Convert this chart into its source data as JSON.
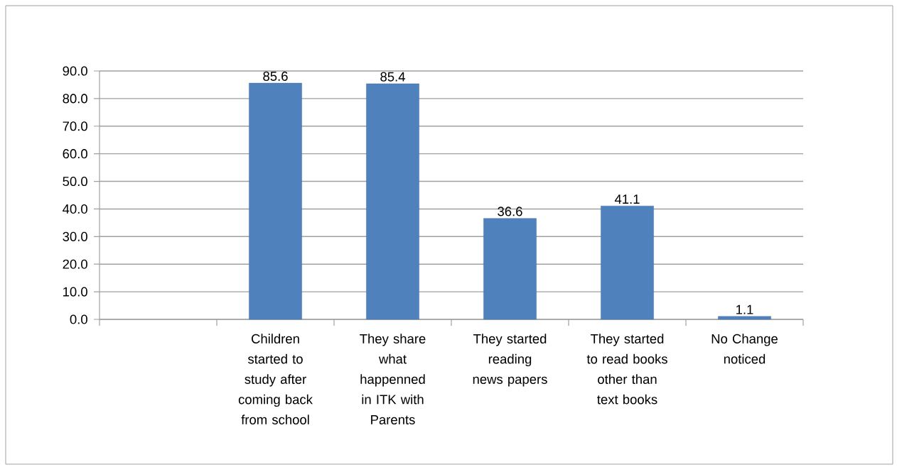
{
  "chart_data": {
    "type": "bar",
    "categories": [
      null,
      "Children started to study after coming back from school",
      "They share what happenned in ITK with Parents",
      "They started reading news papers",
      "They started to read books other than text books",
      "No Change noticed"
    ],
    "values": [
      null,
      85.6,
      85.4,
      36.6,
      41.1,
      1.1
    ],
    "color": "#4f81bd",
    "ylim": [
      0,
      90
    ],
    "yticks": [
      {
        "value": 0,
        "label": "0.0"
      },
      {
        "value": 10,
        "label": "10.0"
      },
      {
        "value": 20,
        "label": "20.0"
      },
      {
        "value": 30,
        "label": "30.0"
      },
      {
        "value": 40,
        "label": "40.0"
      },
      {
        "value": 50,
        "label": "50.0"
      },
      {
        "value": 60,
        "label": "60.0"
      },
      {
        "value": 70,
        "label": "70.0"
      },
      {
        "value": 80,
        "label": "80.0"
      },
      {
        "value": 90,
        "label": "90.0"
      }
    ],
    "grid": "y",
    "data_labels": true
  }
}
